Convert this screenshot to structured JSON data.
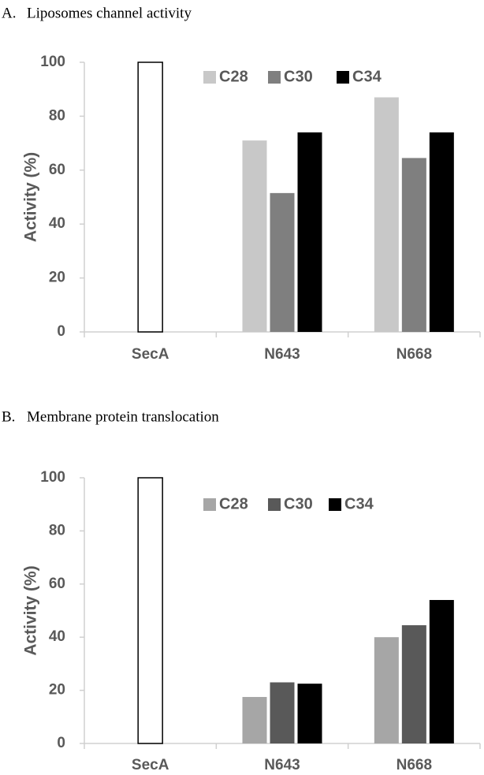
{
  "chart_data": [
    {
      "type": "bar",
      "panel_label": "A.",
      "title": "Liposomes channel activity",
      "ylabel": "Activity (%)",
      "xlabel": "",
      "ylim": [
        0,
        100
      ],
      "yticks": [
        0,
        20,
        40,
        60,
        80,
        100
      ],
      "categories": [
        "SecA",
        "N643",
        "N668"
      ],
      "legend_position": "top-center",
      "series": [
        {
          "name": "",
          "color": "#ffffff",
          "values": [
            100,
            null,
            null
          ]
        },
        {
          "name": "C28",
          "color": "#c8c8c8",
          "values": [
            null,
            71,
            87
          ]
        },
        {
          "name": "C30",
          "color": "#7f7f7f",
          "values": [
            null,
            51.5,
            64.5
          ]
        },
        {
          "name": "C34",
          "color": "#000000",
          "values": [
            null,
            74,
            74
          ]
        }
      ]
    },
    {
      "type": "bar",
      "panel_label": "B.",
      "title": "Membrane protein translocation",
      "ylabel": "Activity (%)",
      "xlabel": "",
      "ylim": [
        0,
        100
      ],
      "yticks": [
        0,
        20,
        40,
        60,
        80,
        100
      ],
      "categories": [
        "SecA",
        "N643",
        "N668"
      ],
      "legend_position": "top-center",
      "series": [
        {
          "name": "",
          "color": "#ffffff",
          "values": [
            100,
            null,
            null
          ]
        },
        {
          "name": "C28",
          "color": "#a6a6a6",
          "values": [
            null,
            17.5,
            40
          ]
        },
        {
          "name": "C30",
          "color": "#595959",
          "values": [
            null,
            23,
            44.5
          ]
        },
        {
          "name": "C34",
          "color": "#000000",
          "values": [
            null,
            22.5,
            54
          ]
        }
      ]
    }
  ]
}
